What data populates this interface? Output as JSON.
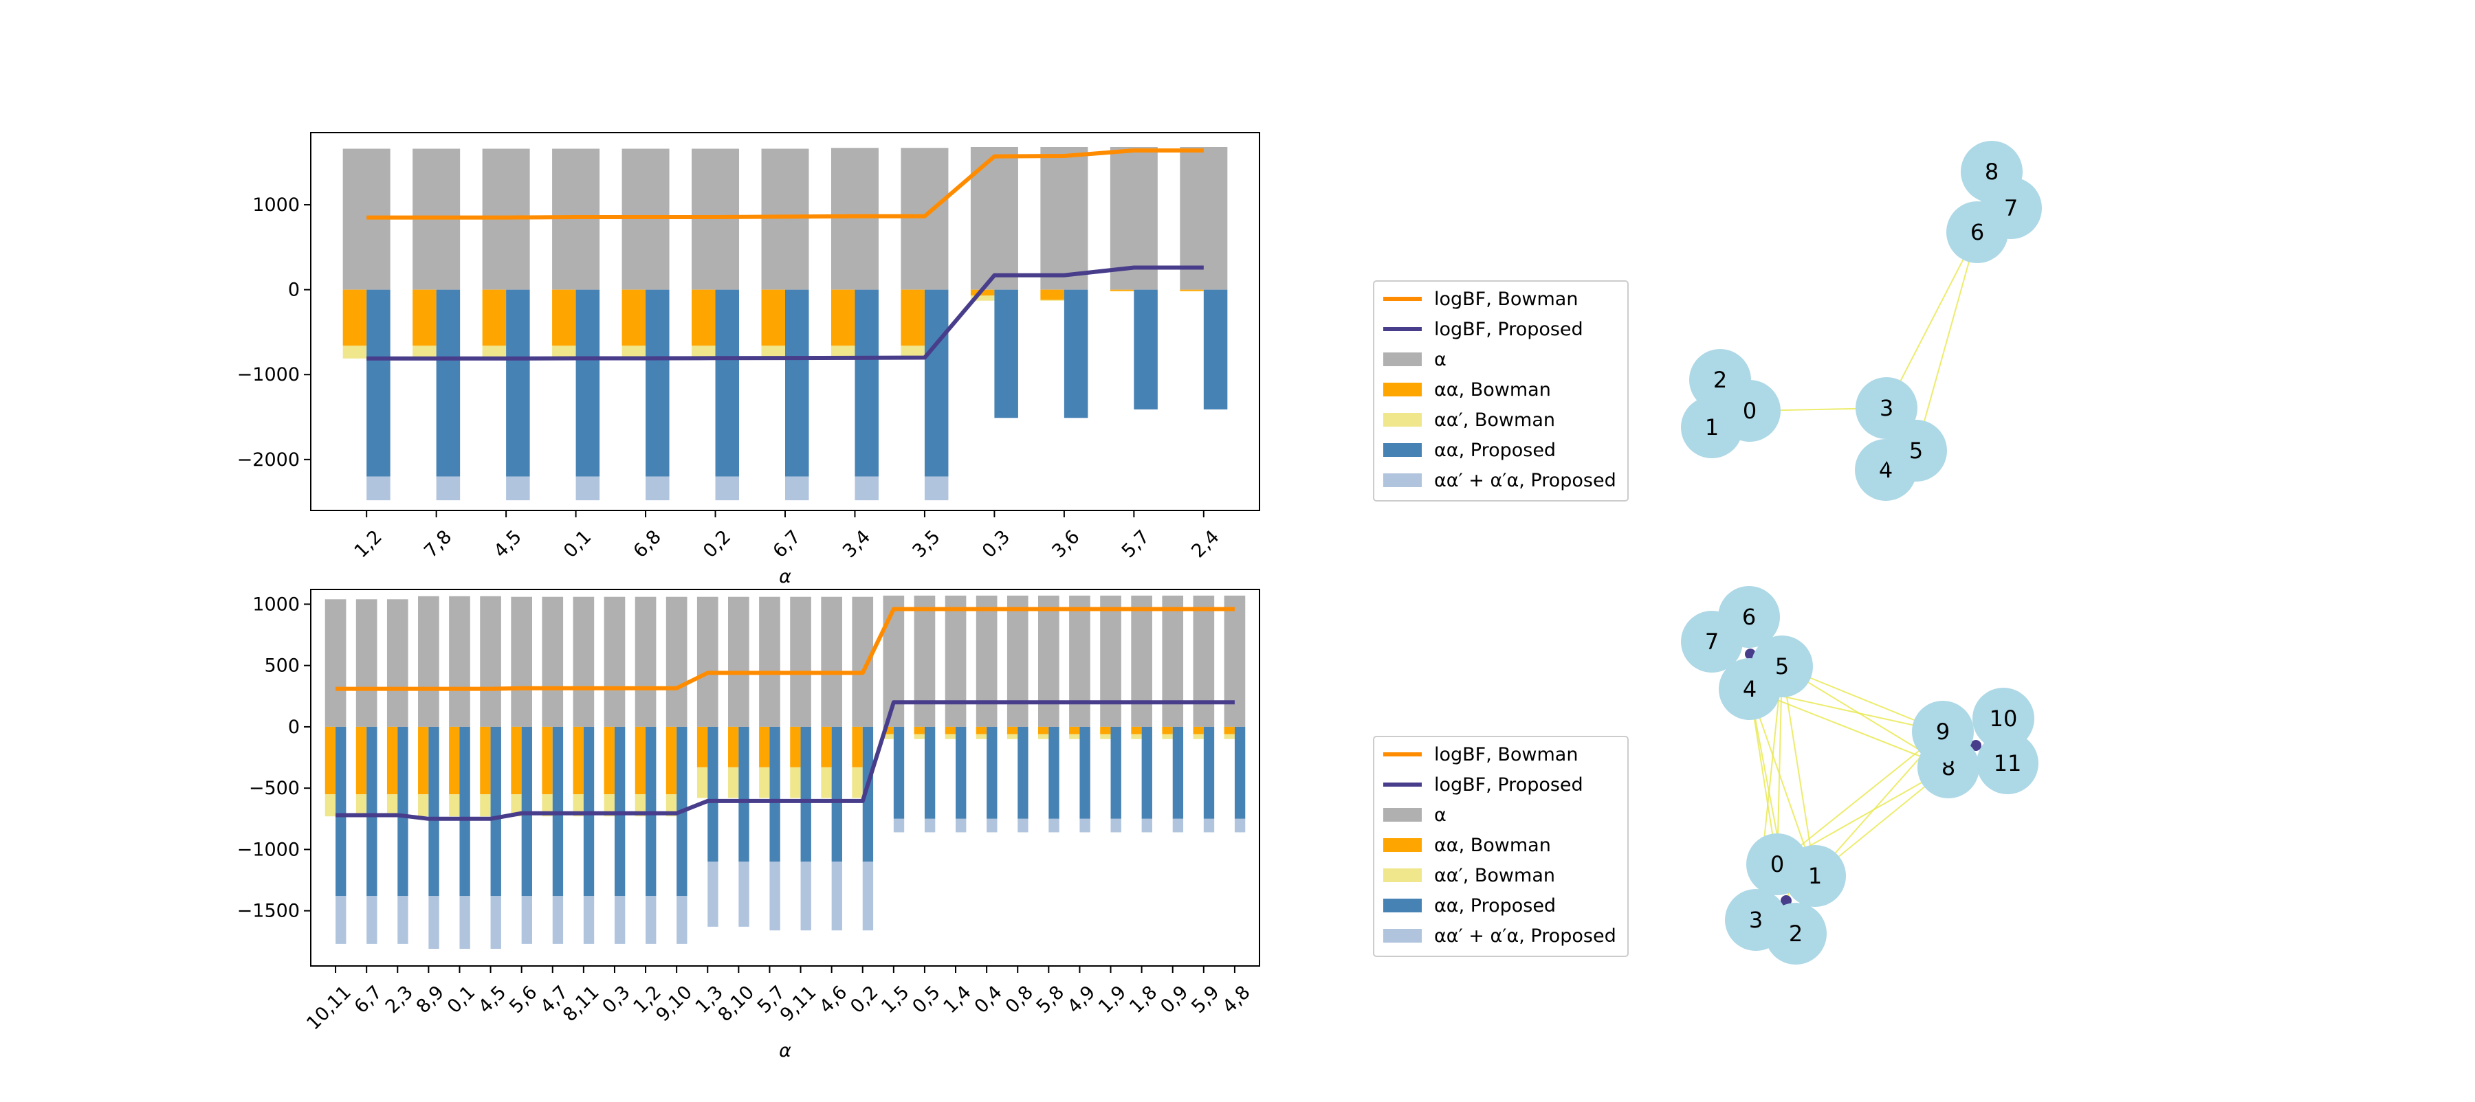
{
  "figure": {
    "colors": {
      "grey": "#b0b0b0",
      "orange": "#ffa500",
      "khaki": "#f0e68c",
      "steelblue": "#4682b4",
      "lightsteelblue": "#b0c4de",
      "line_bowman": "#ff8c00",
      "line_proposed": "#483d8b",
      "node": "#add8e6",
      "edge": "#e8e84a"
    }
  },
  "chart_data": [
    {
      "type": "bar",
      "title": "",
      "xlabel": "α",
      "ylabel": "",
      "ylim": [
        -2600,
        1850
      ],
      "yticks": [
        1000,
        0,
        -1000,
        -2000
      ],
      "ytick_labels": [
        "1000",
        "0",
        "−1000",
        "−2000"
      ],
      "categories": [
        "1,2",
        "7,8",
        "4,5",
        "0,1",
        "6,8",
        "0,2",
        "6,7",
        "3,4",
        "3,5",
        "0,3",
        "3,6",
        "5,7",
        "2,4"
      ],
      "bars": {
        "alpha": [
          1660,
          1660,
          1660,
          1660,
          1660,
          1660,
          1660,
          1670,
          1670,
          1680,
          1680,
          1680,
          1680
        ],
        "aa_bowman": [
          -660,
          -660,
          -660,
          -660,
          -660,
          -660,
          -660,
          -660,
          -660,
          -70,
          -120,
          -15,
          -15
        ],
        "aap_bowman": [
          -150,
          -150,
          -150,
          -150,
          -150,
          -150,
          -150,
          -150,
          -150,
          -60,
          -10,
          -5,
          -5
        ],
        "aa_proposed": [
          -2200,
          -2200,
          -2200,
          -2200,
          -2200,
          -2200,
          -2200,
          -2200,
          -2200,
          -1510,
          -1510,
          -1410,
          -1410
        ],
        "aap_proposed": [
          -280,
          -280,
          -280,
          -280,
          -280,
          -280,
          -280,
          -280,
          -280,
          0,
          0,
          0,
          0
        ]
      },
      "series": [
        {
          "name": "logBF, Bowman",
          "values": [
            850,
            850,
            850,
            855,
            855,
            855,
            860,
            865,
            865,
            1570,
            1575,
            1640,
            1640
          ]
        },
        {
          "name": "logBF, Proposed",
          "values": [
            -810,
            -810,
            -810,
            -808,
            -808,
            -806,
            -805,
            -803,
            -800,
            170,
            170,
            260,
            260
          ]
        }
      ],
      "legend": {
        "placement": "outside-right",
        "entries": [
          "logBF, Bowman",
          "logBF, Proposed",
          "α",
          "αα, Bowman",
          "αα′, Bowman",
          "αα, Proposed",
          "αα′ + α′α, Proposed"
        ]
      }
    },
    {
      "type": "bar",
      "title": "",
      "xlabel": "α",
      "ylabel": "",
      "ylim": [
        -1950,
        1120
      ],
      "yticks": [
        1000,
        500,
        0,
        -500,
        -1000,
        -1500
      ],
      "ytick_labels": [
        "1000",
        "500",
        "0",
        "−500",
        "−1000",
        "−1500"
      ],
      "categories": [
        "10,11",
        "6,7",
        "2,3",
        "8,9",
        "0,1",
        "4,5",
        "5,6",
        "4,7",
        "8,11",
        "0,3",
        "1,2",
        "9,10",
        "1,3",
        "8,10",
        "5,7",
        "9,11",
        "4,6",
        "0,2",
        "1,5",
        "0,5",
        "1,4",
        "0,4",
        "0,8",
        "5,8",
        "4,9",
        "1,9",
        "1,8",
        "0,9",
        "5,9",
        "4,8"
      ],
      "bars": {
        "alpha": [
          1040,
          1040,
          1040,
          1065,
          1065,
          1065,
          1060,
          1060,
          1060,
          1060,
          1060,
          1060,
          1060,
          1060,
          1060,
          1060,
          1060,
          1060,
          1070,
          1070,
          1070,
          1070,
          1070,
          1070,
          1070,
          1070,
          1070,
          1070,
          1070,
          1070
        ],
        "aa_bowman": [
          -550,
          -550,
          -550,
          -550,
          -550,
          -550,
          -550,
          -550,
          -550,
          -550,
          -550,
          -550,
          -330,
          -330,
          -330,
          -330,
          -330,
          -330,
          -60,
          -60,
          -60,
          -60,
          -60,
          -60,
          -60,
          -60,
          -60,
          -60,
          -60,
          -60
        ],
        "aap_bowman": [
          -180,
          -180,
          -180,
          -180,
          -180,
          -180,
          -180,
          -180,
          -180,
          -180,
          -180,
          -180,
          -250,
          -250,
          -250,
          -250,
          -250,
          -250,
          -40,
          -40,
          -40,
          -40,
          -40,
          -40,
          -40,
          -40,
          -40,
          -40,
          -40,
          -40
        ],
        "aa_proposed": [
          -1380,
          -1380,
          -1380,
          -1380,
          -1380,
          -1380,
          -1380,
          -1380,
          -1380,
          -1380,
          -1380,
          -1380,
          -1100,
          -1100,
          -1100,
          -1100,
          -1100,
          -1100,
          -750,
          -750,
          -750,
          -750,
          -750,
          -750,
          -750,
          -750,
          -750,
          -750,
          -750,
          -750
        ],
        "aap_proposed": [
          -390,
          -390,
          -390,
          -430,
          -430,
          -430,
          -390,
          -390,
          -390,
          -390,
          -390,
          -390,
          -530,
          -530,
          -560,
          -560,
          -560,
          -560,
          -110,
          -110,
          -110,
          -110,
          -110,
          -110,
          -110,
          -110,
          -110,
          -110,
          -110,
          -110
        ]
      },
      "series": [
        {
          "name": "logBF, Bowman",
          "values": [
            310,
            310,
            310,
            310,
            310,
            310,
            315,
            315,
            315,
            315,
            315,
            315,
            440,
            440,
            440,
            440,
            440,
            440,
            960,
            960,
            960,
            960,
            960,
            960,
            960,
            960,
            960,
            960,
            960,
            960
          ]
        },
        {
          "name": "logBF, Proposed",
          "values": [
            -720,
            -720,
            -720,
            -750,
            -750,
            -750,
            -705,
            -705,
            -705,
            -705,
            -705,
            -705,
            -605,
            -605,
            -605,
            -605,
            -605,
            -605,
            200,
            200,
            200,
            200,
            200,
            200,
            200,
            200,
            200,
            200,
            200,
            200
          ]
        }
      ],
      "legend": {
        "placement": "outside-right",
        "entries": [
          "logBF, Bowman",
          "logBF, Proposed",
          "α",
          "αα, Bowman",
          "αα′, Bowman",
          "αα, Proposed",
          "αα′ + α′α, Proposed"
        ]
      }
    }
  ],
  "graphs": [
    {
      "nodes": [
        "0",
        "1",
        "2",
        "3",
        "4",
        "5",
        "6",
        "7",
        "8"
      ],
      "edges": [
        [
          "0",
          "3"
        ],
        [
          "3",
          "6"
        ],
        [
          "5",
          "6"
        ]
      ]
    },
    {
      "nodes": [
        "0",
        "1",
        "2",
        "3",
        "4",
        "5",
        "6",
        "7",
        "8",
        "9",
        "10",
        "11"
      ],
      "edges": [
        [
          "4",
          "8"
        ],
        [
          "4",
          "9"
        ],
        [
          "5",
          "8"
        ],
        [
          "5",
          "9"
        ],
        [
          "4",
          "0"
        ],
        [
          "4",
          "1"
        ],
        [
          "5",
          "0"
        ],
        [
          "5",
          "1"
        ],
        [
          "0",
          "8"
        ],
        [
          "0",
          "9"
        ],
        [
          "1",
          "8"
        ],
        [
          "1",
          "9"
        ],
        [
          "4",
          "2"
        ],
        [
          "5",
          "3"
        ]
      ]
    }
  ]
}
